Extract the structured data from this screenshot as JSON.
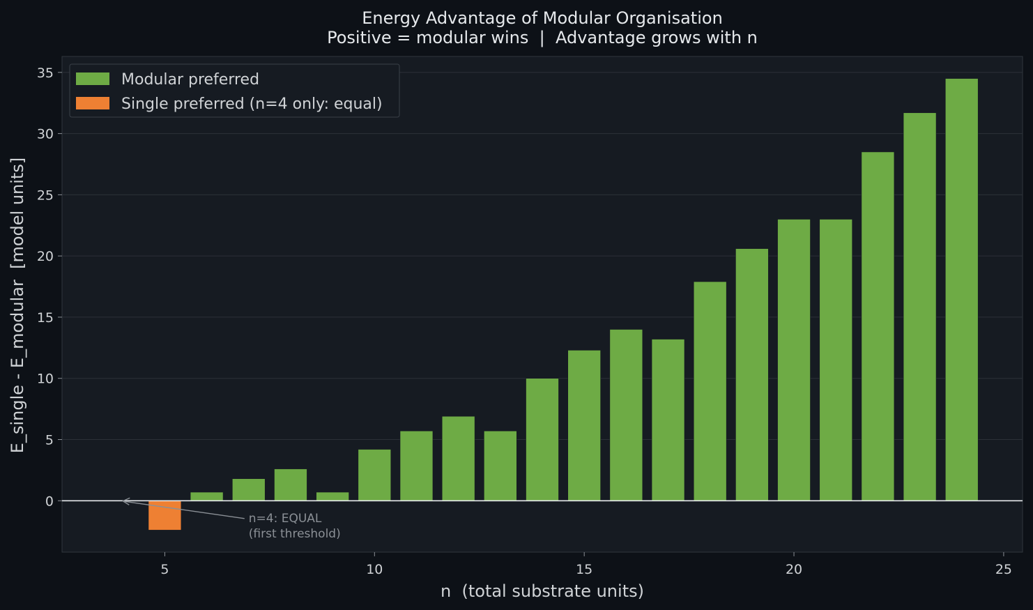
{
  "chart_data": {
    "type": "bar",
    "title": "Energy Advantage of Modular Organisation",
    "subtitle": "Positive = modular wins  |  Advantage grows with n",
    "xlabel": "n  (total substrate units)",
    "ylabel": "E_single - E_modular  [model units]",
    "xlim": [
      2.55,
      25.45
    ],
    "ylim": [
      -4.2,
      36.3
    ],
    "xticks": [
      5,
      10,
      15,
      20,
      25
    ],
    "yticks": [
      0,
      5,
      10,
      15,
      20,
      25,
      30,
      35
    ],
    "grid": "horizontal",
    "legend_position": "top-left",
    "colors": {
      "modular": "#6eab45",
      "single": "#ee8033",
      "background": "#0d1117",
      "plot_background": "#161b22",
      "text": "#d0d3d6",
      "annotation": "#8b9096",
      "zero_line": "#e6e9ec"
    },
    "series": [
      {
        "name": "Modular preferred",
        "color": "#6eab45"
      },
      {
        "name": "Single preferred (n=4 only: equal)",
        "color": "#ee8033"
      }
    ],
    "x": [
      5,
      6,
      7,
      8,
      9,
      10,
      11,
      12,
      13,
      14,
      15,
      16,
      17,
      18,
      19,
      20,
      21,
      22,
      23,
      24
    ],
    "values": [
      -2.4,
      0.7,
      1.8,
      2.6,
      0.7,
      4.2,
      5.7,
      6.9,
      5.7,
      10.0,
      12.3,
      14.0,
      13.2,
      17.9,
      20.6,
      23.0,
      23.0,
      28.5,
      31.7,
      34.5
    ],
    "bar_width": 0.78,
    "annotation": {
      "text": [
        "n=4: EQUAL",
        "(first threshold)"
      ],
      "point": [
        4,
        0
      ],
      "text_at": [
        7,
        -1.4
      ]
    }
  }
}
